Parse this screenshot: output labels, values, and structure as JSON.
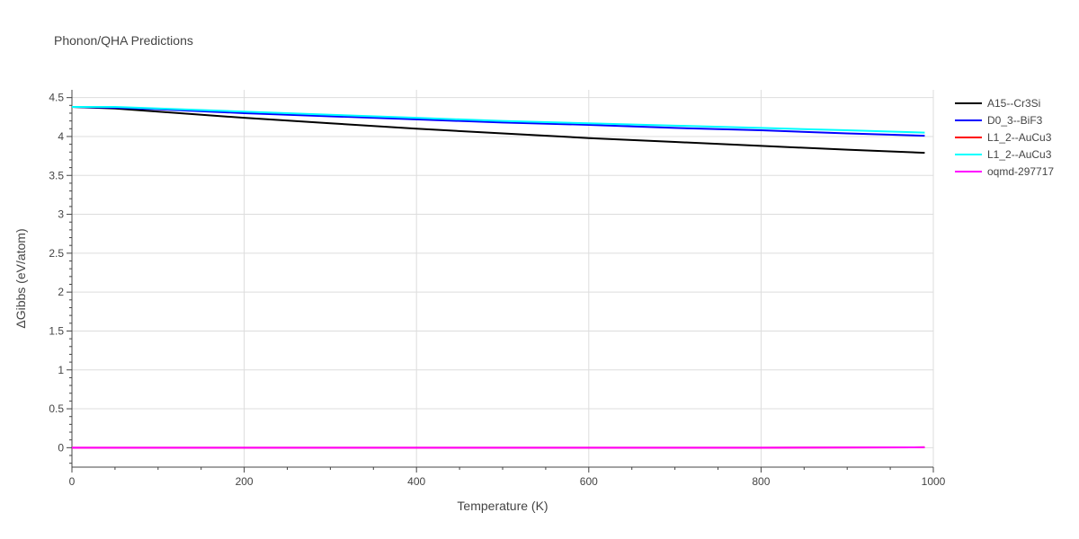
{
  "chart_data": {
    "type": "line",
    "title": "Phonon/QHA Predictions",
    "xlabel": "Temperature (K)",
    "ylabel": "ΔGibbs (eV/atom)",
    "xlim": [
      0,
      1000
    ],
    "ylim": [
      -0.25,
      4.6
    ],
    "xticks": [
      0,
      200,
      400,
      600,
      800,
      1000
    ],
    "xtick_labels": [
      "0",
      "200",
      "400",
      "600",
      "800",
      "1000"
    ],
    "yticks": [
      0,
      0.5,
      1,
      1.5,
      2,
      2.5,
      3,
      3.5,
      4,
      4.5
    ],
    "ytick_labels": [
      "0",
      "0.5",
      "1",
      "1.5",
      "2",
      "2.5",
      "3",
      "3.5",
      "4",
      "4.5"
    ],
    "grid": true,
    "legend_position": "right",
    "series": [
      {
        "name": "A15--Cr3Si",
        "color": "#000000",
        "x": [
          0,
          50,
          100,
          200,
          300,
          400,
          500,
          600,
          700,
          800,
          900,
          990
        ],
        "y": [
          4.38,
          4.36,
          4.32,
          4.24,
          4.17,
          4.1,
          4.04,
          3.98,
          3.93,
          3.88,
          3.83,
          3.79
        ]
      },
      {
        "name": "D0_3--BiF3",
        "color": "#0000ff",
        "x": [
          0,
          50,
          100,
          200,
          300,
          400,
          500,
          600,
          700,
          800,
          900,
          990
        ],
        "y": [
          4.38,
          4.37,
          4.35,
          4.3,
          4.26,
          4.22,
          4.18,
          4.15,
          4.11,
          4.08,
          4.04,
          4.01
        ]
      },
      {
        "name": "L1_2--AuCu3",
        "color": "#ff0000",
        "x": [
          0,
          200,
          400,
          600,
          800,
          990
        ],
        "y": [
          0,
          0,
          0,
          0,
          0,
          0.005
        ]
      },
      {
        "name": "L1_2--AuCu3",
        "color": "#00ffff",
        "x": [
          0,
          50,
          100,
          200,
          300,
          400,
          500,
          600,
          700,
          800,
          900,
          990
        ],
        "y": [
          4.38,
          4.38,
          4.36,
          4.32,
          4.28,
          4.24,
          4.2,
          4.17,
          4.14,
          4.11,
          4.08,
          4.05
        ]
      },
      {
        "name": "oqmd-297717",
        "color": "#ff00ff",
        "x": [
          0,
          200,
          400,
          600,
          800,
          990
        ],
        "y": [
          0,
          0,
          0,
          0,
          0,
          0.005
        ]
      }
    ]
  }
}
